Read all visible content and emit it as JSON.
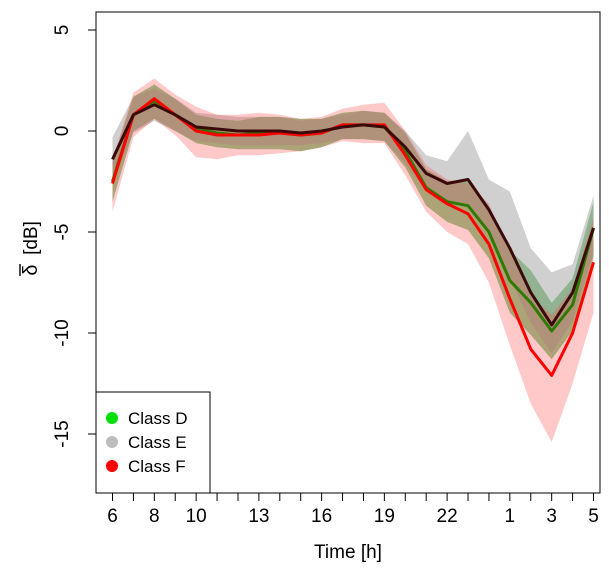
{
  "chart_data": {
    "type": "line",
    "title": "",
    "xlabel": "Time [h]",
    "ylabel_symbol": "δ",
    "ylabel_unit": "[dB]",
    "x_categories": [
      "6",
      "7",
      "8",
      "9",
      "10",
      "11",
      "12",
      "13",
      "14",
      "15",
      "16",
      "17",
      "18",
      "19",
      "20",
      "21",
      "22",
      "23",
      "24",
      "1",
      "2",
      "3",
      "4",
      "5"
    ],
    "x_tick_labels": [
      "6",
      "8",
      "10",
      "13",
      "16",
      "19",
      "22",
      "1",
      "3",
      "5"
    ],
    "y_ticks": [
      5,
      0,
      -5,
      -10,
      -15
    ],
    "y_tick_labels": [
      "5",
      "0",
      "-5",
      "-10",
      "-15"
    ],
    "ylim": [
      -18,
      6
    ],
    "grid": false,
    "legend_placement": "bottom-left",
    "series": [
      {
        "name": "Class D",
        "color": "#00b000",
        "values": [
          -2.5,
          0.8,
          1.5,
          0.8,
          0.1,
          -0.1,
          -0.2,
          -0.1,
          -0.1,
          -0.2,
          -0.1,
          0.3,
          0.3,
          0.2,
          -1.0,
          -2.8,
          -3.5,
          -3.7,
          -5.0,
          -7.4,
          -8.5,
          -9.9,
          -8.6,
          -4.8
        ],
        "lower": [
          -3.5,
          0.0,
          0.6,
          0.0,
          -0.6,
          -0.8,
          -0.9,
          -0.9,
          -0.9,
          -1.0,
          -0.8,
          -0.4,
          -0.4,
          -0.5,
          -1.8,
          -3.7,
          -4.5,
          -4.9,
          -6.3,
          -9.0,
          -10.1,
          -11.3,
          -9.9,
          -6.2
        ],
        "upper": [
          -1.5,
          1.7,
          2.3,
          1.6,
          0.8,
          0.6,
          0.5,
          0.7,
          0.7,
          0.6,
          0.6,
          0.9,
          1.0,
          0.9,
          -0.1,
          -1.9,
          -2.5,
          -2.5,
          -3.7,
          -5.9,
          -6.9,
          -8.5,
          -7.3,
          -3.5
        ]
      },
      {
        "name": "Class E",
        "color": "#a8a8a8",
        "values": [
          -1.4,
          0.8,
          1.3,
          0.8,
          0.2,
          0.1,
          0.0,
          0.0,
          0.0,
          -0.1,
          0.0,
          0.2,
          0.3,
          0.2,
          -0.8,
          -2.1,
          -2.6,
          -2.4,
          -3.9,
          -5.8,
          -8.0,
          -9.6,
          -8.0,
          -4.8
        ],
        "lower": [
          -2.5,
          -0.1,
          0.5,
          0.0,
          -0.5,
          -0.6,
          -0.7,
          -0.7,
          -0.7,
          -0.7,
          -0.6,
          -0.4,
          -0.4,
          -0.5,
          -1.6,
          -3.0,
          -3.7,
          -3.7,
          -5.1,
          -7.3,
          -9.5,
          -11.0,
          -9.4,
          -6.0
        ],
        "upper": [
          -0.3,
          1.7,
          2.1,
          1.6,
          0.9,
          0.8,
          0.7,
          0.7,
          0.7,
          0.5,
          0.6,
          0.8,
          1.0,
          0.9,
          0.0,
          -1.2,
          -1.5,
          0.0,
          -2.4,
          -3.0,
          -5.8,
          -7.0,
          -6.6,
          -3.2
        ]
      },
      {
        "name": "Class F",
        "color": "#ff0000",
        "values": [
          -2.6,
          0.8,
          1.6,
          0.8,
          0.0,
          -0.2,
          -0.2,
          -0.2,
          -0.1,
          -0.2,
          -0.1,
          0.3,
          0.3,
          0.3,
          -1.2,
          -2.9,
          -3.6,
          -4.1,
          -5.6,
          -8.3,
          -10.8,
          -12.1,
          -10.0,
          -6.5
        ],
        "lower": [
          -4.0,
          -0.3,
          0.6,
          -0.2,
          -1.3,
          -1.4,
          -1.2,
          -1.2,
          -1.1,
          -1.0,
          -0.8,
          -0.5,
          -0.6,
          -0.6,
          -2.2,
          -4.0,
          -5.0,
          -5.6,
          -7.5,
          -10.6,
          -13.5,
          -15.4,
          -12.5,
          -9.0
        ],
        "upper": [
          -1.4,
          1.9,
          2.6,
          1.8,
          1.2,
          0.8,
          0.8,
          0.9,
          0.8,
          0.6,
          0.7,
          1.1,
          1.3,
          1.4,
          0.0,
          -1.7,
          -2.4,
          -2.6,
          -3.6,
          -6.0,
          -8.2,
          -9.1,
          -7.8,
          -4.3
        ]
      }
    ],
    "mean_line_color": "#3a0a0a"
  }
}
